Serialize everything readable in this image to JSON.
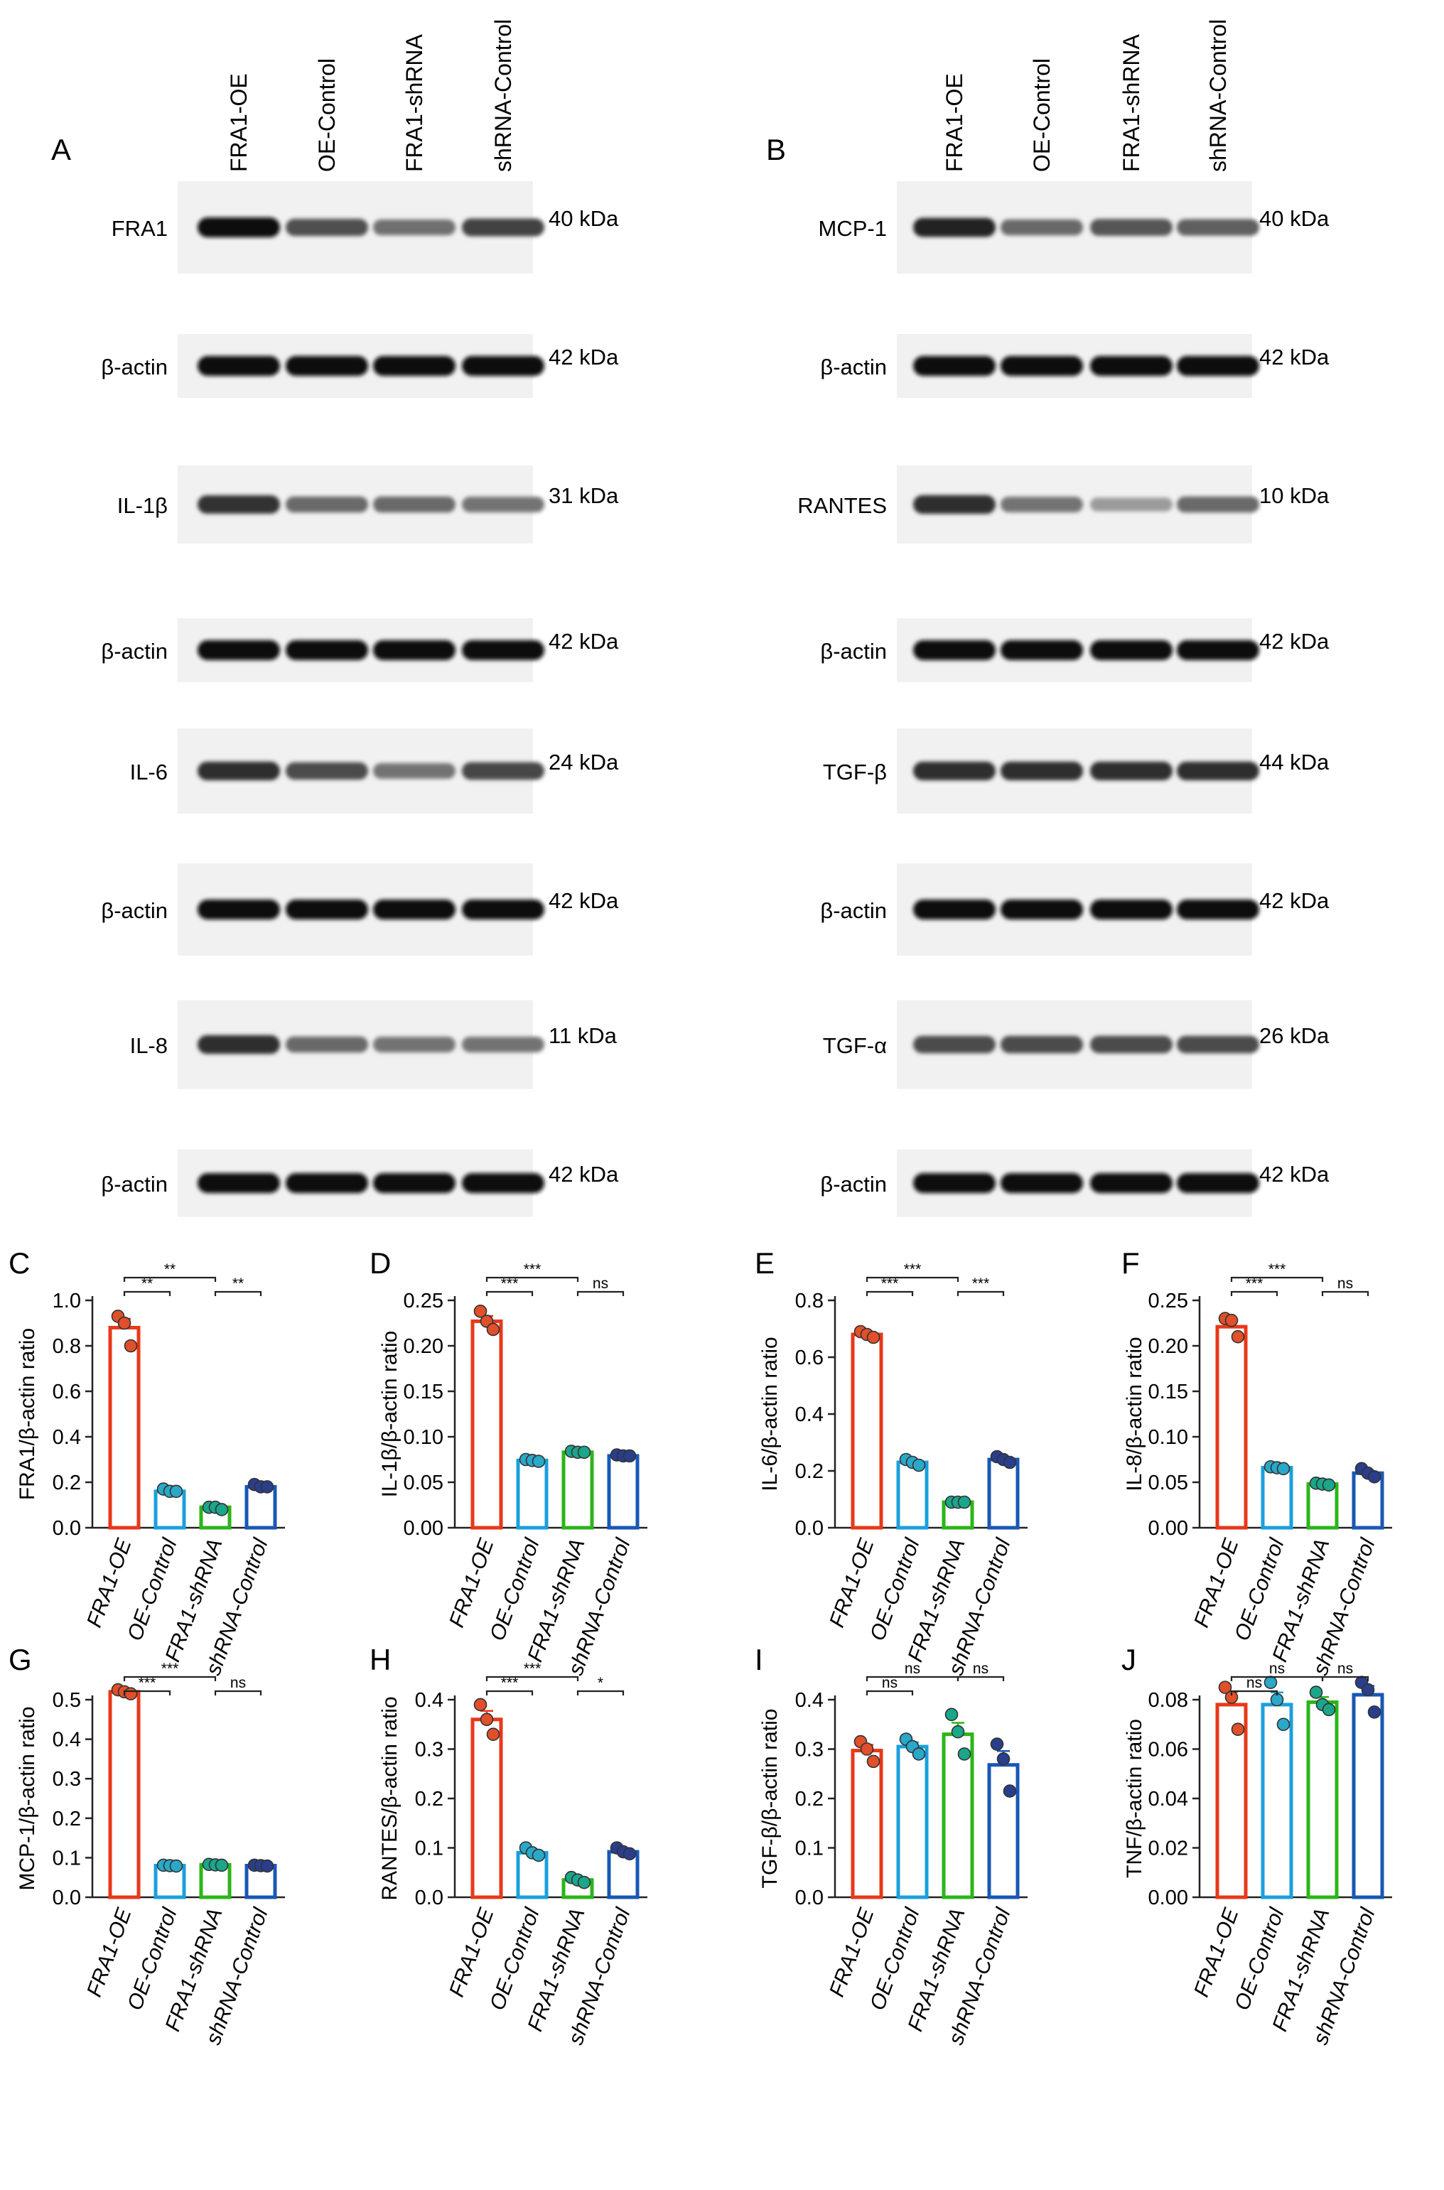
{
  "groups": [
    "FRA1-OE",
    "OE-Control",
    "FRA1-shRNA",
    "shRNA-Control"
  ],
  "group_colors": [
    "#e8381a",
    "#1aa0dc",
    "#2bb51a",
    "#1858b5"
  ],
  "dot_colors": [
    "#e0502a",
    "#2aa8c8",
    "#1aa68a",
    "#2a3e8c"
  ],
  "western": [
    {
      "panel_letter": "A",
      "blots": [
        {
          "label": "FRA1",
          "size": "40 kDa",
          "intensity": [
            1.0,
            0.68,
            0.52,
            0.74
          ]
        },
        {
          "label": "β-actin",
          "size": "42 kDa",
          "intensity": [
            1.0,
            1.0,
            1.0,
            1.0
          ]
        },
        {
          "label": "IL-1β",
          "size": "31 kDa",
          "intensity": [
            0.82,
            0.55,
            0.55,
            0.5
          ]
        },
        {
          "label": "β-actin",
          "size": "42 kDa",
          "intensity": [
            1.0,
            1.0,
            1.0,
            1.0
          ]
        },
        {
          "label": "IL-6",
          "size": "24 kDa",
          "intensity": [
            0.85,
            0.7,
            0.5,
            0.72
          ]
        },
        {
          "label": "β-actin",
          "size": "42 kDa",
          "intensity": [
            1.0,
            1.0,
            1.0,
            1.0
          ]
        },
        {
          "label": "IL-8",
          "size": "11 kDa",
          "intensity": [
            0.85,
            0.55,
            0.5,
            0.5
          ]
        },
        {
          "label": "β-actin",
          "size": "42 kDa",
          "intensity": [
            1.0,
            1.0,
            1.0,
            1.0
          ]
        }
      ]
    },
    {
      "panel_letter": "B",
      "blots": [
        {
          "label": "MCP-1",
          "size": "40 kDa",
          "intensity": [
            0.9,
            0.55,
            0.65,
            0.6
          ]
        },
        {
          "label": "β-actin",
          "size": "42 kDa",
          "intensity": [
            1.0,
            1.0,
            1.0,
            1.0
          ]
        },
        {
          "label": "RANTES",
          "size": "10 kDa",
          "intensity": [
            0.85,
            0.5,
            0.3,
            0.55
          ]
        },
        {
          "label": "β-actin",
          "size": "42 kDa",
          "intensity": [
            1.0,
            1.0,
            1.0,
            1.0
          ]
        },
        {
          "label": "TGF-β",
          "size": "44 kDa",
          "intensity": [
            0.85,
            0.85,
            0.85,
            0.85
          ]
        },
        {
          "label": "β-actin",
          "size": "42 kDa",
          "intensity": [
            1.0,
            1.0,
            1.0,
            1.0
          ]
        },
        {
          "label": "TGF-α",
          "size": "26 kDa",
          "intensity": [
            0.7,
            0.7,
            0.7,
            0.7
          ]
        },
        {
          "label": "β-actin",
          "size": "42 kDa",
          "intensity": [
            1.0,
            1.0,
            1.0,
            1.0
          ]
        }
      ]
    }
  ],
  "chart_data": [
    {
      "panel_letter": "C",
      "type": "bar",
      "ylabel": "FRA1/β-actin ratio",
      "ylim": [
        0,
        1.0
      ],
      "yticks": [
        "0.0",
        "0.2",
        "0.4",
        "0.6",
        "0.8",
        "1.0"
      ],
      "categories": [
        "FRA1-OE",
        "OE-Control",
        "FRA1-shRNA",
        "shRNA-Control"
      ],
      "values": [
        0.88,
        0.16,
        0.09,
        0.18
      ],
      "points": [
        [
          0.93,
          0.9,
          0.8
        ],
        [
          0.17,
          0.16,
          0.16
        ],
        [
          0.09,
          0.09,
          0.08
        ],
        [
          0.19,
          0.18,
          0.18
        ]
      ],
      "brackets": [
        {
          "from": 0,
          "to": 1,
          "level": 1,
          "label": "**"
        },
        {
          "from": 0,
          "to": 2,
          "level": 2,
          "label": "**"
        },
        {
          "from": 2,
          "to": 3,
          "level": 3,
          "label": "**"
        }
      ]
    },
    {
      "panel_letter": "D",
      "type": "bar",
      "ylabel": "IL-1β/β-actin ratio",
      "ylim": [
        0,
        0.25
      ],
      "yticks": [
        "0.00",
        "0.05",
        "0.10",
        "0.15",
        "0.20",
        "0.25"
      ],
      "categories": [
        "FRA1-OE",
        "OE-Control",
        "FRA1-shRNA",
        "shRNA-Control"
      ],
      "values": [
        0.227,
        0.074,
        0.083,
        0.079
      ],
      "points": [
        [
          0.238,
          0.227,
          0.218
        ],
        [
          0.075,
          0.074,
          0.073
        ],
        [
          0.084,
          0.083,
          0.083
        ],
        [
          0.08,
          0.079,
          0.079
        ]
      ],
      "brackets": [
        {
          "from": 0,
          "to": 1,
          "level": 1,
          "label": "***"
        },
        {
          "from": 0,
          "to": 2,
          "level": 2,
          "label": "***"
        },
        {
          "from": 2,
          "to": 3,
          "level": 3,
          "label": "ns"
        }
      ]
    },
    {
      "panel_letter": "E",
      "type": "bar",
      "ylabel": "IL-6/β-actin ratio",
      "ylim": [
        0,
        0.8
      ],
      "yticks": [
        "0.0",
        "0.2",
        "0.4",
        "0.6",
        "0.8"
      ],
      "categories": [
        "FRA1-OE",
        "OE-Control",
        "FRA1-shRNA",
        "shRNA-Control"
      ],
      "values": [
        0.68,
        0.23,
        0.09,
        0.24
      ],
      "points": [
        [
          0.69,
          0.68,
          0.67
        ],
        [
          0.24,
          0.23,
          0.22
        ],
        [
          0.09,
          0.09,
          0.09
        ],
        [
          0.25,
          0.24,
          0.23
        ]
      ],
      "brackets": [
        {
          "from": 0,
          "to": 1,
          "level": 1,
          "label": "***"
        },
        {
          "from": 0,
          "to": 2,
          "level": 2,
          "label": "***"
        },
        {
          "from": 2,
          "to": 3,
          "level": 3,
          "label": "***"
        }
      ]
    },
    {
      "panel_letter": "F",
      "type": "bar",
      "ylabel": "IL-8/β-actin ratio",
      "ylim": [
        0,
        0.25
      ],
      "yticks": [
        "0.00",
        "0.05",
        "0.10",
        "0.15",
        "0.20",
        "0.25"
      ],
      "categories": [
        "FRA1-OE",
        "OE-Control",
        "FRA1-shRNA",
        "shRNA-Control"
      ],
      "values": [
        0.221,
        0.066,
        0.048,
        0.06
      ],
      "points": [
        [
          0.23,
          0.228,
          0.21
        ],
        [
          0.067,
          0.066,
          0.065
        ],
        [
          0.049,
          0.048,
          0.047
        ],
        [
          0.065,
          0.06,
          0.056
        ]
      ],
      "brackets": [
        {
          "from": 0,
          "to": 1,
          "level": 1,
          "label": "***"
        },
        {
          "from": 0,
          "to": 2,
          "level": 2,
          "label": "***"
        },
        {
          "from": 2,
          "to": 3,
          "level": 3,
          "label": "ns"
        }
      ]
    },
    {
      "panel_letter": "G",
      "type": "bar",
      "ylabel": "MCP-1/β-actin ratio",
      "ylim": [
        0,
        0.5
      ],
      "yticks": [
        "0.0",
        "0.1",
        "0.2",
        "0.3",
        "0.4",
        "0.5"
      ],
      "categories": [
        "FRA1-OE",
        "OE-Control",
        "FRA1-shRNA",
        "shRNA-Control"
      ],
      "values": [
        0.52,
        0.08,
        0.082,
        0.08
      ],
      "points": [
        [
          0.525,
          0.52,
          0.515
        ],
        [
          0.081,
          0.08,
          0.079
        ],
        [
          0.083,
          0.082,
          0.081
        ],
        [
          0.081,
          0.08,
          0.079
        ]
      ],
      "brackets": [
        {
          "from": 0,
          "to": 1,
          "level": 1,
          "label": "***"
        },
        {
          "from": 0,
          "to": 2,
          "level": 2,
          "label": "***"
        },
        {
          "from": 2,
          "to": 3,
          "level": 3,
          "label": "ns"
        }
      ]
    },
    {
      "panel_letter": "H",
      "type": "bar",
      "ylabel": "RANTES/β-actin ratio",
      "ylim": [
        0,
        0.4
      ],
      "yticks": [
        "0.0",
        "0.1",
        "0.2",
        "0.3",
        "0.4"
      ],
      "categories": [
        "FRA1-OE",
        "OE-Control",
        "FRA1-shRNA",
        "shRNA-Control"
      ],
      "values": [
        0.36,
        0.09,
        0.035,
        0.092
      ],
      "points": [
        [
          0.39,
          0.36,
          0.33
        ],
        [
          0.1,
          0.09,
          0.085
        ],
        [
          0.04,
          0.035,
          0.03
        ],
        [
          0.1,
          0.092,
          0.088
        ]
      ],
      "brackets": [
        {
          "from": 0,
          "to": 1,
          "level": 1,
          "label": "***"
        },
        {
          "from": 0,
          "to": 2,
          "level": 2,
          "label": "***"
        },
        {
          "from": 2,
          "to": 3,
          "level": 3,
          "label": "*"
        }
      ]
    },
    {
      "panel_letter": "I",
      "type": "bar",
      "ylabel": "TGF-β/β-actin ratio",
      "ylim": [
        0,
        0.4
      ],
      "yticks": [
        "0.0",
        "0.1",
        "0.2",
        "0.3",
        "0.4"
      ],
      "categories": [
        "FRA1-OE",
        "OE-Control",
        "FRA1-shRNA",
        "shRNA-Control"
      ],
      "values": [
        0.297,
        0.305,
        0.33,
        0.268
      ],
      "points": [
        [
          0.315,
          0.3,
          0.275
        ],
        [
          0.32,
          0.305,
          0.29
        ],
        [
          0.37,
          0.335,
          0.29
        ],
        [
          0.31,
          0.28,
          0.215
        ]
      ],
      "brackets": [
        {
          "from": 0,
          "to": 1,
          "level": 1,
          "label": "ns"
        },
        {
          "from": 0,
          "to": 2,
          "level": 2,
          "label": "ns"
        },
        {
          "from": 2,
          "to": 3,
          "level": 2,
          "label": "ns"
        }
      ]
    },
    {
      "panel_letter": "J",
      "type": "bar",
      "ylabel": "TNF/β-actin ratio",
      "ylim": [
        0,
        0.08
      ],
      "yticks": [
        "0.00",
        "0.02",
        "0.04",
        "0.06",
        "0.08"
      ],
      "categories": [
        "FRA1-OE",
        "OE-Control",
        "FRA1-shRNA",
        "shRNA-Control"
      ],
      "values": [
        0.078,
        0.078,
        0.079,
        0.082
      ],
      "points": [
        [
          0.085,
          0.081,
          0.068
        ],
        [
          0.087,
          0.08,
          0.07
        ],
        [
          0.083,
          0.078,
          0.076
        ],
        [
          0.087,
          0.084,
          0.075
        ]
      ],
      "brackets": [
        {
          "from": 0,
          "to": 1,
          "level": 1,
          "label": "ns"
        },
        {
          "from": 0,
          "to": 2,
          "level": 2,
          "label": "ns"
        },
        {
          "from": 2,
          "to": 3,
          "level": 2,
          "label": "ns"
        }
      ]
    }
  ]
}
